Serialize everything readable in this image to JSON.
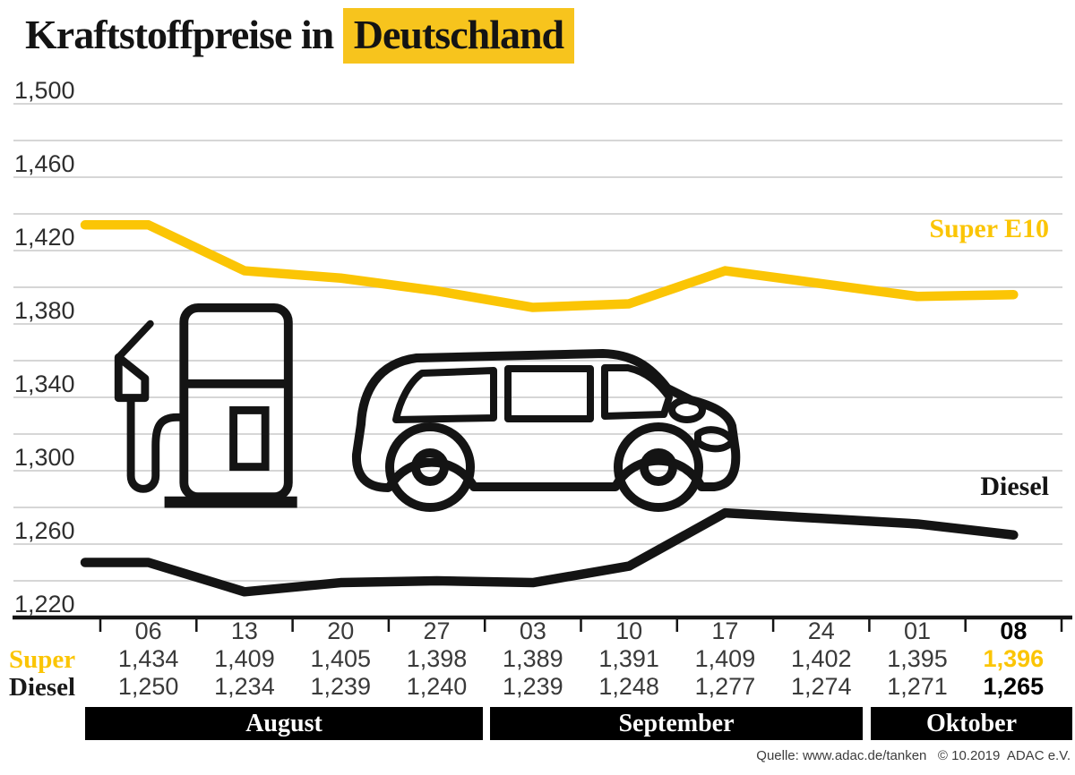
{
  "title": {
    "prefix": "Kraftstoffpreise in",
    "highlight": "Deutschland"
  },
  "source": "Quelle: www.adac.de/tanken   © 10.2019  ADAC e.V.",
  "colors": {
    "yellow": "#FBC505",
    "highlight_yellow": "#F7C41D",
    "line_black": "#141414",
    "grid": "#c9c9c9",
    "text": "#3a3a3a"
  },
  "chart_data": {
    "type": "line",
    "title": "Kraftstoffpreise in Deutschland",
    "x_tick_labels": [
      "06",
      "13",
      "20",
      "27",
      "03",
      "10",
      "17",
      "24",
      "01",
      "08"
    ],
    "month_groups": [
      {
        "label": "August",
        "columns": 4
      },
      {
        "label": "September",
        "columns": 4
      },
      {
        "label": "Oktober",
        "columns": 2
      }
    ],
    "y_tick_labels": [
      "1,500",
      "1,460",
      "1,420",
      "1,380",
      "1,340",
      "1,300",
      "1,260",
      "1,220"
    ],
    "ylim": [
      1220,
      1500
    ],
    "grid_step": 20,
    "legend": "inline-right",
    "series": [
      {
        "name": "Super E10",
        "color": "#FBC505",
        "values": [
          1434,
          1409,
          1405,
          1398,
          1389,
          1391,
          1409,
          1402,
          1395,
          1396
        ]
      },
      {
        "name": "Diesel",
        "color": "#141414",
        "values": [
          1250,
          1234,
          1239,
          1240,
          1239,
          1248,
          1277,
          1274,
          1271,
          1265
        ]
      }
    ]
  },
  "table": {
    "rows": [
      {
        "label": "Super",
        "values": [
          "1,434",
          "1,409",
          "1,405",
          "1,398",
          "1,389",
          "1,391",
          "1,409",
          "1,402",
          "1,395",
          "1,396"
        ]
      },
      {
        "label": "Diesel",
        "values": [
          "1,250",
          "1,234",
          "1,239",
          "1,240",
          "1,239",
          "1,248",
          "1,277",
          "1,274",
          "1,271",
          "1,265"
        ]
      }
    ],
    "highlight_last_column": true
  },
  "icons": [
    {
      "name": "fuel-pump-icon"
    },
    {
      "name": "car-icon"
    }
  ]
}
